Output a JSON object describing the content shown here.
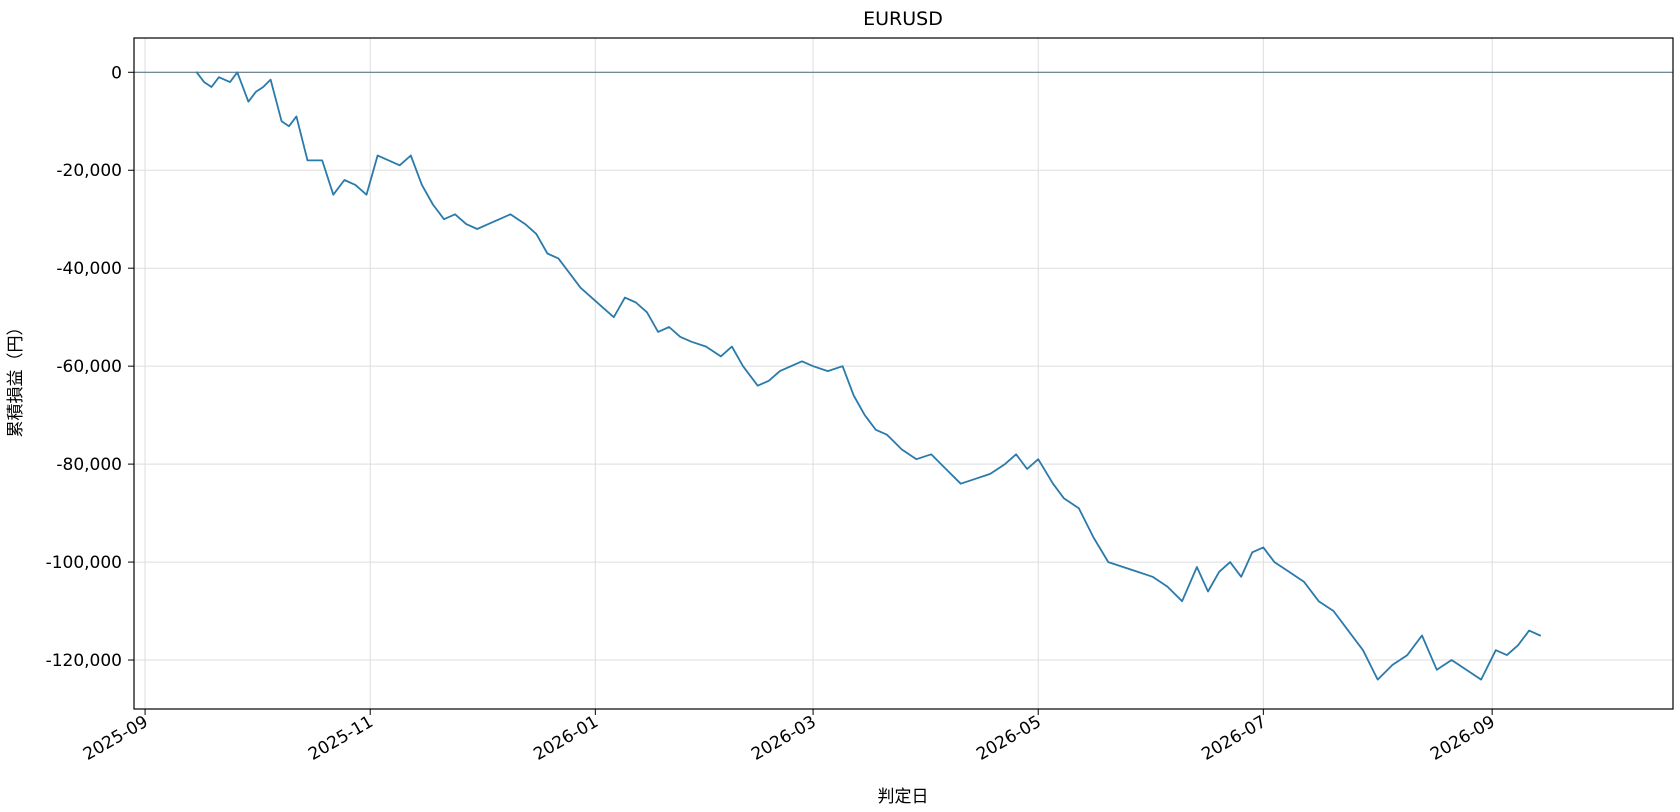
{
  "chart_data": {
    "type": "line",
    "title": "EURUSD",
    "xlabel": "判定日",
    "ylabel": "累積損益（円）",
    "x_type": "date",
    "xlim": [
      "2025-08-29",
      "2026-10-20"
    ],
    "ylim": [
      -130000,
      7000
    ],
    "x_ticks": [
      "2025-09",
      "2025-11",
      "2026-01",
      "2026-03",
      "2026-05",
      "2026-07",
      "2026-09"
    ],
    "x_tick_dates": [
      "2025-09-01",
      "2025-11-01",
      "2026-01-01",
      "2026-03-01",
      "2026-05-01",
      "2026-07-01",
      "2026-09-01"
    ],
    "y_ticks": [
      0,
      -20000,
      -40000,
      -60000,
      -80000,
      -100000,
      -120000
    ],
    "y_tick_labels": [
      "0",
      "-20,000",
      "-40,000",
      "-60,000",
      "-80,000",
      "-100,000",
      "-120,000"
    ],
    "grid": true,
    "reference_line": {
      "y": 0,
      "color": "#5f7a8a"
    },
    "colors": {
      "series": "#2a7aab",
      "grid": "#dddddd",
      "frame": "#000000"
    },
    "series": [
      {
        "x": [
          "2025-09-15",
          "2025-09-17",
          "2025-09-19",
          "2025-09-21",
          "2025-09-24",
          "2025-09-26",
          "2025-09-29",
          "2025-10-01",
          "2025-10-03",
          "2025-10-05",
          "2025-10-08",
          "2025-10-10",
          "2025-10-12",
          "2025-10-15",
          "2025-10-19",
          "2025-10-22",
          "2025-10-25",
          "2025-10-28",
          "2025-10-31",
          "2025-11-03",
          "2025-11-06",
          "2025-11-09",
          "2025-11-12",
          "2025-11-15",
          "2025-11-18",
          "2025-11-21",
          "2025-11-24",
          "2025-11-27",
          "2025-11-30",
          "2025-12-03",
          "2025-12-06",
          "2025-12-09",
          "2025-12-13",
          "2025-12-16",
          "2025-12-19",
          "2025-12-22",
          "2025-12-25",
          "2025-12-28",
          "2025-12-31",
          "2026-01-03",
          "2026-01-06",
          "2026-01-09",
          "2026-01-12",
          "2026-01-15",
          "2026-01-18",
          "2026-01-21",
          "2026-01-24",
          "2026-01-27",
          "2026-01-31",
          "2026-02-04",
          "2026-02-07",
          "2026-02-10",
          "2026-02-14",
          "2026-02-17",
          "2026-02-20",
          "2026-02-23",
          "2026-02-26",
          "2026-03-01",
          "2026-03-05",
          "2026-03-09",
          "2026-03-12",
          "2026-03-15",
          "2026-03-18",
          "2026-03-21",
          "2026-03-25",
          "2026-03-29",
          "2026-04-02",
          "2026-04-06",
          "2026-04-10",
          "2026-04-14",
          "2026-04-18",
          "2026-04-22",
          "2026-04-25",
          "2026-04-28",
          "2026-05-01",
          "2026-05-05",
          "2026-05-08",
          "2026-05-12",
          "2026-05-16",
          "2026-05-20",
          "2026-05-24",
          "2026-05-28",
          "2026-06-01",
          "2026-06-05",
          "2026-06-09",
          "2026-06-13",
          "2026-06-16",
          "2026-06-19",
          "2026-06-22",
          "2026-06-25",
          "2026-06-28",
          "2026-07-01",
          "2026-07-04",
          "2026-07-08",
          "2026-07-12",
          "2026-07-16",
          "2026-07-20",
          "2026-07-24",
          "2026-07-28",
          "2026-08-01",
          "2026-08-05",
          "2026-08-09",
          "2026-08-13",
          "2026-08-17",
          "2026-08-21",
          "2026-08-25",
          "2026-08-29",
          "2026-09-02",
          "2026-09-05",
          "2026-09-08",
          "2026-09-11",
          "2026-09-14"
        ],
        "y": [
          0,
          -2000,
          -3000,
          -1000,
          -2000,
          0,
          -6000,
          -4000,
          -3000,
          -1500,
          -10000,
          -11000,
          -9000,
          -18000,
          -18000,
          -25000,
          -22000,
          -23000,
          -25000,
          -17000,
          -18000,
          -19000,
          -17000,
          -23000,
          -27000,
          -30000,
          -29000,
          -31000,
          -32000,
          -31000,
          -30000,
          -29000,
          -31000,
          -33000,
          -37000,
          -38000,
          -41000,
          -44000,
          -46000,
          -48000,
          -50000,
          -46000,
          -47000,
          -49000,
          -53000,
          -52000,
          -54000,
          -55000,
          -56000,
          -58000,
          -56000,
          -60000,
          -64000,
          -63000,
          -61000,
          -60000,
          -59000,
          -60000,
          -61000,
          -60000,
          -66000,
          -70000,
          -73000,
          -74000,
          -77000,
          -79000,
          -78000,
          -81000,
          -84000,
          -83000,
          -82000,
          -80000,
          -78000,
          -81000,
          -79000,
          -84000,
          -87000,
          -89000,
          -95000,
          -100000,
          -101000,
          -102000,
          -103000,
          -105000,
          -108000,
          -101000,
          -106000,
          -102000,
          -100000,
          -103000,
          -98000,
          -97000,
          -100000,
          -102000,
          -104000,
          -108000,
          -110000,
          -114000,
          -118000,
          -124000,
          -121000,
          -119000,
          -115000,
          -122000,
          -120000,
          -122000,
          -124000,
          -118000,
          -119000,
          -117000,
          -114000,
          -115000
        ]
      }
    ]
  }
}
